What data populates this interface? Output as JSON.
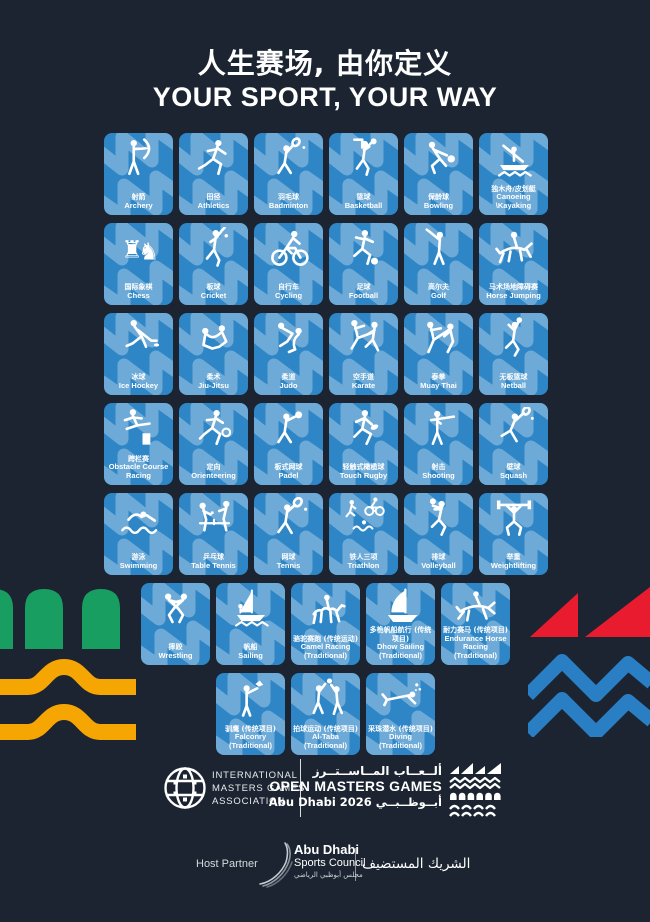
{
  "poster": {
    "title_zh": "人生赛场, 由你定义",
    "title_en": "YOUR SPORT, YOUR WAY",
    "colors": {
      "background": "#1b2430",
      "tile_blue": "#2e86c6",
      "tile_wave": "rgba(255,255,255,0.3)",
      "pictogram": "#ffffff",
      "green": "#189e60",
      "yellow": "#f5a603",
      "red": "#e81c2e",
      "zigzag_blue": "#2a7fc4"
    },
    "decorations": {
      "left": [
        "green-arches-decoration",
        "yellow-waves-decoration"
      ],
      "right": [
        "red-triangles-decoration",
        "blue-zigzag-decoration"
      ]
    }
  },
  "sports": {
    "rows": [
      [
        {
          "zh": "射箭",
          "en": "Archery",
          "icon": "archery-icon"
        },
        {
          "zh": "田径",
          "en": "Athletics",
          "icon": "athletics-icon"
        },
        {
          "zh": "羽毛球",
          "en": "Badminton",
          "icon": "badminton-icon"
        },
        {
          "zh": "篮球",
          "en": "Basketball",
          "icon": "basketball-icon"
        },
        {
          "zh": "保龄球",
          "en": "Bowling",
          "icon": "bowling-icon"
        },
        {
          "zh": "独木舟/皮划艇",
          "en": "Canoeing \\Kayaking",
          "icon": "canoeing-icon"
        }
      ],
      [
        {
          "zh": "国际象棋",
          "en": "Chess",
          "icon": "chess-icon"
        },
        {
          "zh": "板球",
          "en": "Cricket",
          "icon": "cricket-icon"
        },
        {
          "zh": "自行车",
          "en": "Cycling",
          "icon": "cycling-icon"
        },
        {
          "zh": "足球",
          "en": "Football",
          "icon": "football-icon"
        },
        {
          "zh": "高尔夫",
          "en": "Golf",
          "icon": "golf-icon"
        },
        {
          "zh": "马术场地障碍赛",
          "en": "Horse Jumping",
          "icon": "horse-jumping-icon"
        }
      ],
      [
        {
          "zh": "冰球",
          "en": "Ice Hockey",
          "icon": "ice-hockey-icon"
        },
        {
          "zh": "柔术",
          "en": "Jiu-Jitsu",
          "icon": "jiu-jitsu-icon"
        },
        {
          "zh": "柔道",
          "en": "Judo",
          "icon": "judo-icon"
        },
        {
          "zh": "空手道",
          "en": "Karate",
          "icon": "karate-icon"
        },
        {
          "zh": "泰拳",
          "en": "Muay Thai",
          "icon": "muay-thai-icon"
        },
        {
          "zh": "无板篮球",
          "en": "Netball",
          "icon": "netball-icon"
        }
      ],
      [
        {
          "zh": "跨栏赛",
          "en": "Obstacle Course Racing",
          "icon": "obstacle-course-icon"
        },
        {
          "zh": "定向",
          "en": "Orienteering",
          "icon": "orienteering-icon"
        },
        {
          "zh": "板式网球",
          "en": "Padel",
          "icon": "padel-icon"
        },
        {
          "zh": "轻触式橄榄球",
          "en": "Touch Rugby",
          "icon": "touch-rugby-icon"
        },
        {
          "zh": "射击",
          "en": "Shooting",
          "icon": "shooting-icon"
        },
        {
          "zh": "壁球",
          "en": "Squash",
          "icon": "squash-icon"
        }
      ],
      [
        {
          "zh": "游泳",
          "en": "Swimming",
          "icon": "swimming-icon"
        },
        {
          "zh": "乒乓球",
          "en": "Table Tennis",
          "icon": "table-tennis-icon"
        },
        {
          "zh": "网球",
          "en": "Tennis",
          "icon": "tennis-icon"
        },
        {
          "zh": "铁人三项",
          "en": "Triathlon",
          "icon": "triathlon-icon"
        },
        {
          "zh": "排球",
          "en": "Volleyball",
          "icon": "volleyball-icon"
        },
        {
          "zh": "举重",
          "en": "Weightlifting",
          "icon": "weightlifting-icon"
        }
      ],
      [
        {
          "zh": "摔跤",
          "en": "Wrestling",
          "icon": "wrestling-icon"
        },
        {
          "zh": "帆船",
          "en": "Sailing",
          "icon": "sailing-icon"
        },
        {
          "zh": "骆驼赛跑 (传统运动)",
          "en": "Camel Racing (Traditional)",
          "icon": "camel-racing-icon"
        },
        {
          "zh": "多桅帆船航行 (传统项目)",
          "en": "Dhow Sailing (Traditional)",
          "icon": "dhow-sailing-icon"
        },
        {
          "zh": "耐力赛马 (传统项目)",
          "en": "Endurance Horse Racing (Traditional)",
          "icon": "endurance-horse-icon"
        }
      ],
      [
        {
          "zh": "驯鹰 (传统项目)",
          "en": "Falconry (Traditional)",
          "icon": "falconry-icon"
        },
        {
          "zh": "拍球运动 (传统项目)",
          "en": "Al-Taba (Traditional)",
          "icon": "al-taba-icon"
        },
        {
          "zh": "采珠潜水 (传统项目)",
          "en": "Diving (Traditional)",
          "icon": "pearl-diving-icon"
        }
      ]
    ]
  },
  "footer": {
    "imga": {
      "icon": "globe-icon",
      "line1": "INTERNATIONAL",
      "line2": "MASTERS GAMES",
      "line3": "ASSOCIATION"
    },
    "omg": {
      "arabic": "ألــعــاب المــاســتــرز",
      "name": "OPEN MASTERS GAMES",
      "city": "Abu Dhabi 2026 أبــوظــبــي",
      "emblem": "omg-emblem-icon"
    },
    "host": {
      "label": "Host Partner",
      "council_icon": "adsc-swoosh-icon",
      "council_en1": "Abu Dhabi",
      "council_en2": "Sports Council",
      "council_ar": "مجلس أبوظبي الرياضي",
      "host_ar": "الشريك المستضيف"
    }
  }
}
